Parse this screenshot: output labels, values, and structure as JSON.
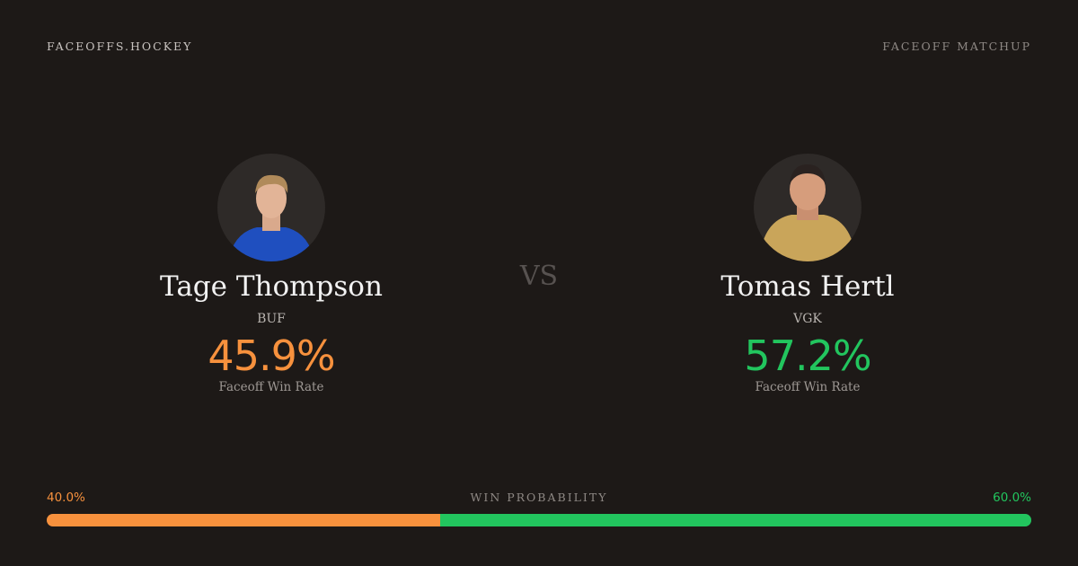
{
  "header": {
    "brand": "FACEOFFS.HOCKEY",
    "label": "FACEOFF MATCHUP"
  },
  "players": [
    {
      "name": "Tage Thompson",
      "team": "BUF",
      "rate": "45.9%",
      "rate_label": "Faceoff Win Rate",
      "color": "#f7913d"
    },
    {
      "name": "Tomas Hertl",
      "team": "VGK",
      "rate": "57.2%",
      "rate_label": "Faceoff Win Rate",
      "color": "#22c55e"
    }
  ],
  "vs": "VS",
  "win_probability": {
    "label": "WIN PROBABILITY",
    "left": {
      "value": 40.0,
      "label": "40.0%"
    },
    "right": {
      "value": 60.0,
      "label": "60.0%"
    }
  }
}
